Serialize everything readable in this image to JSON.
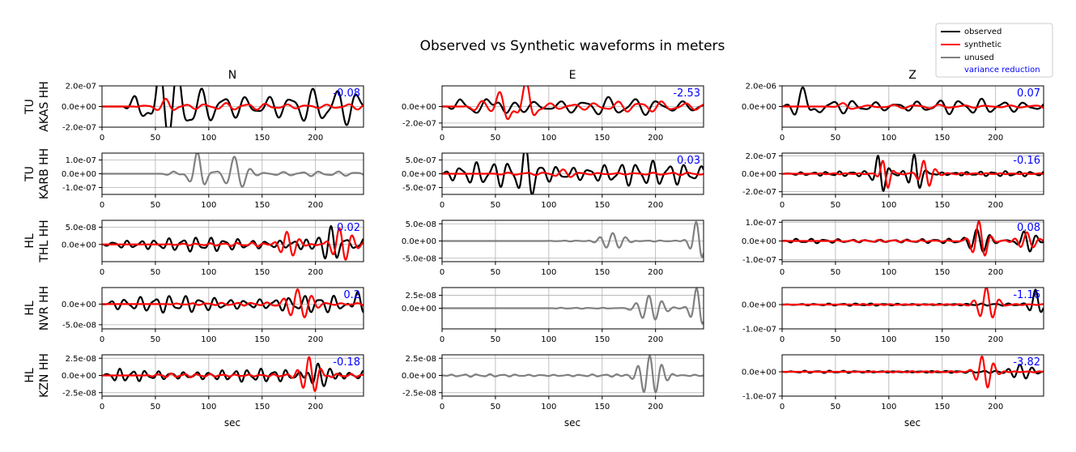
{
  "figure": {
    "title": "Observed vs Synthetic waveforms in meters",
    "column_titles": [
      "N",
      "E",
      "Z"
    ],
    "xlabel": "sec"
  },
  "legend": {
    "placement": "top-right",
    "entries": [
      {
        "label": "observed",
        "color": "#000000",
        "kind": "line"
      },
      {
        "label": "synthetic",
        "color": "#ff0000",
        "kind": "line"
      },
      {
        "label": "unused",
        "color": "#808080",
        "kind": "line"
      },
      {
        "label": "variance reduction",
        "color": "#0000ff",
        "kind": "text"
      }
    ]
  },
  "rows": [
    {
      "network": "TU",
      "station": "AKAS HH"
    },
    {
      "network": "TU",
      "station": "KARB HH"
    },
    {
      "network": "HL",
      "station": "THL HH"
    },
    {
      "network": "HL",
      "station": "NVR HH"
    },
    {
      "network": "HL",
      "station": "KZN HH"
    }
  ],
  "chart_data": {
    "type": "line",
    "grid": true,
    "xlim": [
      0,
      245
    ],
    "x_ticks": [
      0,
      50,
      100,
      150,
      200
    ],
    "x_tick_labels": [
      "0",
      "50",
      "100",
      "150",
      "200"
    ],
    "colors": {
      "observed": "#000000",
      "synthetic": "#ff0000",
      "unused": "#808080",
      "vr": "#0000ff"
    },
    "panels": [
      {
        "row": 0,
        "col": 0,
        "name": "TU AKAS HH N",
        "used": true,
        "vr": "-0.08",
        "ylim": [
          -2e-07,
          2e-07
        ],
        "ticks": [
          2e-07,
          0,
          -2e-07
        ],
        "tick_labels": [
          "2.0e-07",
          "0.0e+00",
          "-2.0e-07"
        ],
        "obs": {
          "amp": 1.9e-07,
          "onset": 20,
          "period": 21,
          "bursts": [
            [
              55,
              2.6e-07,
              8
            ],
            [
              72,
              2.3e-07,
              8
            ]
          ]
        },
        "syn": {
          "amp": 3.5e-08,
          "onset": 30,
          "period": 19,
          "bursts": [
            [
              60,
              6e-08,
              8
            ]
          ]
        }
      },
      {
        "row": 0,
        "col": 1,
        "name": "TU AKAS HH E",
        "used": true,
        "vr": "-2.53",
        "ylim": [
          -2.5e-07,
          2.5e-07
        ],
        "ticks": [
          0,
          -2e-07
        ],
        "tick_labels": [
          "0.0e+00",
          "-2.0e-07"
        ],
        "obs": {
          "amp": 1.2e-07,
          "onset": 5,
          "period": 23,
          "bursts": [
            [
              55,
              1.5e-07,
              10
            ]
          ]
        },
        "syn": {
          "amp": 7e-08,
          "onset": 20,
          "period": 21,
          "bursts": [
            [
              58,
              2.6e-07,
              8
            ],
            [
              80,
              2.8e-07,
              7
            ]
          ]
        }
      },
      {
        "row": 0,
        "col": 2,
        "name": "TU AKAS HH Z",
        "used": true,
        "vr": "0.07",
        "ylim": [
          -2e-06,
          2e-06
        ],
        "ticks": [
          2e-06,
          0
        ],
        "tick_labels": [
          "2.0e-06",
          "0.0e+00"
        ],
        "obs": {
          "amp": 8e-07,
          "onset": 0,
          "period": 20,
          "bursts": [
            [
              20,
              2.4e-06,
              9
            ]
          ]
        },
        "syn": {
          "amp": 2e-07,
          "onset": 55,
          "period": 22,
          "bursts": [
            [
              60,
              4e-07,
              8
            ]
          ]
        }
      },
      {
        "row": 1,
        "col": 0,
        "name": "TU KARB HH N",
        "used": false,
        "vr": "",
        "ylim": [
          -1.5e-07,
          1.5e-07
        ],
        "ticks": [
          1e-07,
          0,
          -1e-07
        ],
        "tick_labels": [
          "1.0e-07",
          "0.0e+00",
          "-1.0e-07"
        ],
        "unused": {
          "amp": 1.8e-08,
          "onset": 55,
          "period": 17,
          "bursts": [
            [
              90,
              1.6e-07,
              8
            ],
            [
              125,
              1.3e-07,
              12
            ]
          ]
        }
      },
      {
        "row": 1,
        "col": 1,
        "name": "TU KARB HH E",
        "used": true,
        "vr": "0.03",
        "ylim": [
          -7.5e-07,
          7.5e-07
        ],
        "ticks": [
          5e-07,
          0,
          -5e-07
        ],
        "tick_labels": [
          "5.0e-07",
          "0.0e+00",
          "-5.0e-07"
        ],
        "obs": {
          "amp": 4.8e-07,
          "onset": 0,
          "period": 15,
          "bursts": [
            [
              80,
              7e-07,
              8
            ]
          ]
        },
        "syn": {
          "amp": 5e-08,
          "onset": 40,
          "period": 17,
          "bursts": [
            [
              115,
              1.2e-07,
              10
            ]
          ]
        }
      },
      {
        "row": 1,
        "col": 2,
        "name": "TU KARB HH Z",
        "used": true,
        "vr": "-0.16",
        "ylim": [
          -2.3e-07,
          2.3e-07
        ],
        "ticks": [
          2e-07,
          0,
          -2e-07
        ],
        "tick_labels": [
          "2.0e-07",
          "0.0e+00",
          "-2.0e-07"
        ],
        "obs": {
          "amp": 3e-08,
          "onset": 0,
          "period": 12,
          "bursts": [
            [
              92,
              2e-07,
              7
            ],
            [
              125,
              2.2e-07,
              7
            ]
          ]
        },
        "syn": {
          "amp": 1e-08,
          "onset": 30,
          "period": 12,
          "bursts": [
            [
              97,
              1.8e-07,
              6
            ],
            [
              135,
              1.5e-07,
              8
            ]
          ]
        }
      },
      {
        "row": 2,
        "col": 0,
        "name": "HL THL HH N",
        "used": true,
        "vr": "0.02",
        "ylim": [
          -5e-08,
          7e-08
        ],
        "ticks": [
          5e-08,
          0
        ],
        "tick_labels": [
          "5.0e-08",
          "0.0e+00"
        ],
        "obs": {
          "amp": 2.2e-08,
          "onset": 0,
          "period": 13,
          "bursts": [
            [
              215,
              5.5e-08,
              14
            ]
          ]
        },
        "syn": {
          "amp": 6e-09,
          "onset": 60,
          "period": 13,
          "bursts": [
            [
              175,
              4e-08,
              12
            ],
            [
              225,
              5e-08,
              12
            ]
          ]
        }
      },
      {
        "row": 2,
        "col": 1,
        "name": "HL THL HH E",
        "used": false,
        "vr": "",
        "ylim": [
          -6e-08,
          6e-08
        ],
        "ticks": [
          5e-08,
          0,
          -5e-08
        ],
        "tick_labels": [
          "5.0e-08",
          "0.0e+00",
          "-5.0e-08"
        ],
        "unused": {
          "amp": 2e-09,
          "onset": 95,
          "period": 13,
          "bursts": [
            [
              160,
              2.5e-08,
              14
            ],
            [
              240,
              6e-08,
              8
            ]
          ]
        }
      },
      {
        "row": 2,
        "col": 2,
        "name": "HL THL HH Z",
        "used": true,
        "vr": "0.08",
        "ylim": [
          -1.1e-07,
          1.1e-07
        ],
        "ticks": [
          1e-07,
          0,
          -1e-07
        ],
        "tick_labels": [
          "1.0e-07",
          "0.0e+00",
          "-1.0e-07"
        ],
        "obs": {
          "amp": 1.3e-08,
          "onset": 0,
          "period": 13,
          "bursts": [
            [
              185,
              6e-08,
              10
            ],
            [
              230,
              6e-08,
              10
            ]
          ]
        },
        "syn": {
          "amp": 6e-09,
          "onset": 40,
          "period": 13,
          "bursts": [
            [
              185,
              1.05e-07,
              9
            ],
            [
              230,
              5e-08,
              10
            ]
          ]
        }
      },
      {
        "row": 3,
        "col": 0,
        "name": "HL NVR HH N",
        "used": true,
        "vr": "0.2",
        "ylim": [
          -6e-08,
          4e-08
        ],
        "ticks": [
          0,
          -5e-08
        ],
        "tick_labels": [
          "0.0e+00",
          "-5.0e-08"
        ],
        "obs": {
          "amp": 2.2e-08,
          "onset": 0,
          "period": 14,
          "bursts": [
            [
              240,
              4.5e-08,
              8
            ]
          ]
        },
        "syn": {
          "amp": 4e-09,
          "onset": 60,
          "period": 14,
          "bursts": [
            [
              185,
              3.5e-08,
              14
            ]
          ]
        }
      },
      {
        "row": 3,
        "col": 1,
        "name": "HL NVR HH E",
        "used": false,
        "vr": "",
        "ylim": [
          -4e-08,
          4e-08
        ],
        "ticks": [
          2.5e-08,
          0
        ],
        "tick_labels": [
          "2.5e-08",
          "0.0e+00"
        ],
        "unused": {
          "amp": 1e-09,
          "onset": 100,
          "period": 13,
          "bursts": [
            [
              195,
              2.5e-08,
              14
            ],
            [
              240,
              4e-08,
              8
            ]
          ]
        }
      },
      {
        "row": 3,
        "col": 2,
        "name": "HL NVR HH Z",
        "used": true,
        "vr": "-1.16",
        "ylim": [
          -1e-07,
          7e-08
        ],
        "ticks": [
          0,
          -1e-07
        ],
        "tick_labels": [
          "0.0e+00",
          "-1.0e-07"
        ],
        "obs": {
          "amp": 5e-09,
          "onset": 0,
          "period": 13,
          "bursts": [
            [
              238,
              6e-08,
              6
            ]
          ]
        },
        "syn": {
          "amp": 3e-09,
          "onset": 60,
          "period": 13,
          "bursts": [
            [
              192,
              7e-08,
              10
            ]
          ]
        }
      },
      {
        "row": 4,
        "col": 0,
        "name": "HL KZN HH N",
        "used": true,
        "vr": "-0.18",
        "ylim": [
          -3e-08,
          3e-08
        ],
        "ticks": [
          2.5e-08,
          0,
          -2.5e-08
        ],
        "tick_labels": [
          "2.5e-08",
          "0.0e+00",
          "-2.5e-08"
        ],
        "obs": {
          "amp": 1e-08,
          "onset": 0,
          "period": 12,
          "bursts": [
            [
              205,
              2.2e-08,
              12
            ]
          ]
        },
        "syn": {
          "amp": 3e-09,
          "onset": 40,
          "period": 12,
          "bursts": [
            [
              195,
              2.8e-08,
              10
            ]
          ]
        }
      },
      {
        "row": 4,
        "col": 1,
        "name": "HL KZN HH E",
        "used": false,
        "vr": "",
        "ylim": [
          -3e-08,
          3e-08
        ],
        "ticks": [
          2.5e-08,
          0,
          -2.5e-08
        ],
        "tick_labels": [
          "2.5e-08",
          "0.0e+00",
          "-2.5e-08"
        ],
        "unused": {
          "amp": 2e-09,
          "onset": 0,
          "period": 12,
          "bursts": [
            [
              195,
              3e-08,
              14
            ]
          ]
        }
      },
      {
        "row": 4,
        "col": 2,
        "name": "HL KZN HH Z",
        "used": true,
        "vr": "-3.82",
        "ylim": [
          -1e-07,
          7e-08
        ],
        "ticks": [
          0,
          -1e-07
        ],
        "tick_labels": [
          "0.0e+00",
          "-1.0e-07"
        ],
        "obs": {
          "amp": 5e-09,
          "onset": 0,
          "period": 12,
          "bursts": [
            [
              225,
              3e-08,
              12
            ]
          ]
        },
        "syn": {
          "amp": 3e-09,
          "onset": 60,
          "period": 12,
          "bursts": [
            [
              190,
              7e-08,
              10
            ]
          ]
        }
      }
    ]
  }
}
